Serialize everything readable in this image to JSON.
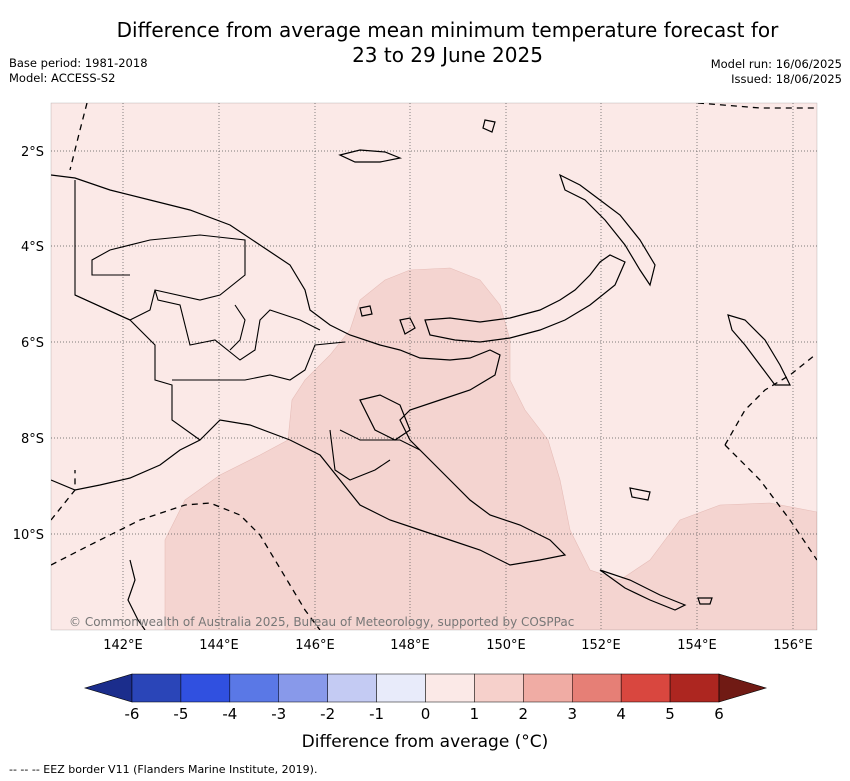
{
  "header": {
    "title_line1": "Difference from average mean minimum temperature forecast for",
    "title_line2": "23 to 29 June 2025",
    "base_period": "Base period: 1981-2018",
    "model": "Model: ACCESS-S2",
    "model_run": "Model run: 16/06/2025",
    "issued": "Issued: 18/06/2025"
  },
  "map": {
    "lat_labels": [
      "2°S",
      "4°S",
      "6°S",
      "8°S",
      "10°S"
    ],
    "lon_labels": [
      "142°E",
      "144°E",
      "146°E",
      "148°E",
      "150°E",
      "152°E",
      "154°E",
      "156°E"
    ],
    "copyright": "© Commonwealth of Australia 2025, Bureau of Meteorology, supported by COSPPac",
    "base_fill_color": "#fbe9e7",
    "anomaly_fill_color": "#f4d4d0"
  },
  "colorbar": {
    "ticks": [
      "-6",
      "-5",
      "-4",
      "-3",
      "-2",
      "-1",
      "0",
      "1",
      "2",
      "3",
      "4",
      "5",
      "6"
    ],
    "colors": [
      "#1b2d8c",
      "#2a45b8",
      "#3050e0",
      "#5a78e6",
      "#8899ea",
      "#c4cbf3",
      "#e8ebfa",
      "#fbe9e7",
      "#f6d0cb",
      "#f0aca4",
      "#e67f76",
      "#d9473f",
      "#ad2620",
      "#701a14"
    ],
    "title": "Difference from average (°C)"
  },
  "footer": {
    "legend_text": "--  --  -- EEZ border V11 (Flanders Marine Institute, 2019)."
  }
}
